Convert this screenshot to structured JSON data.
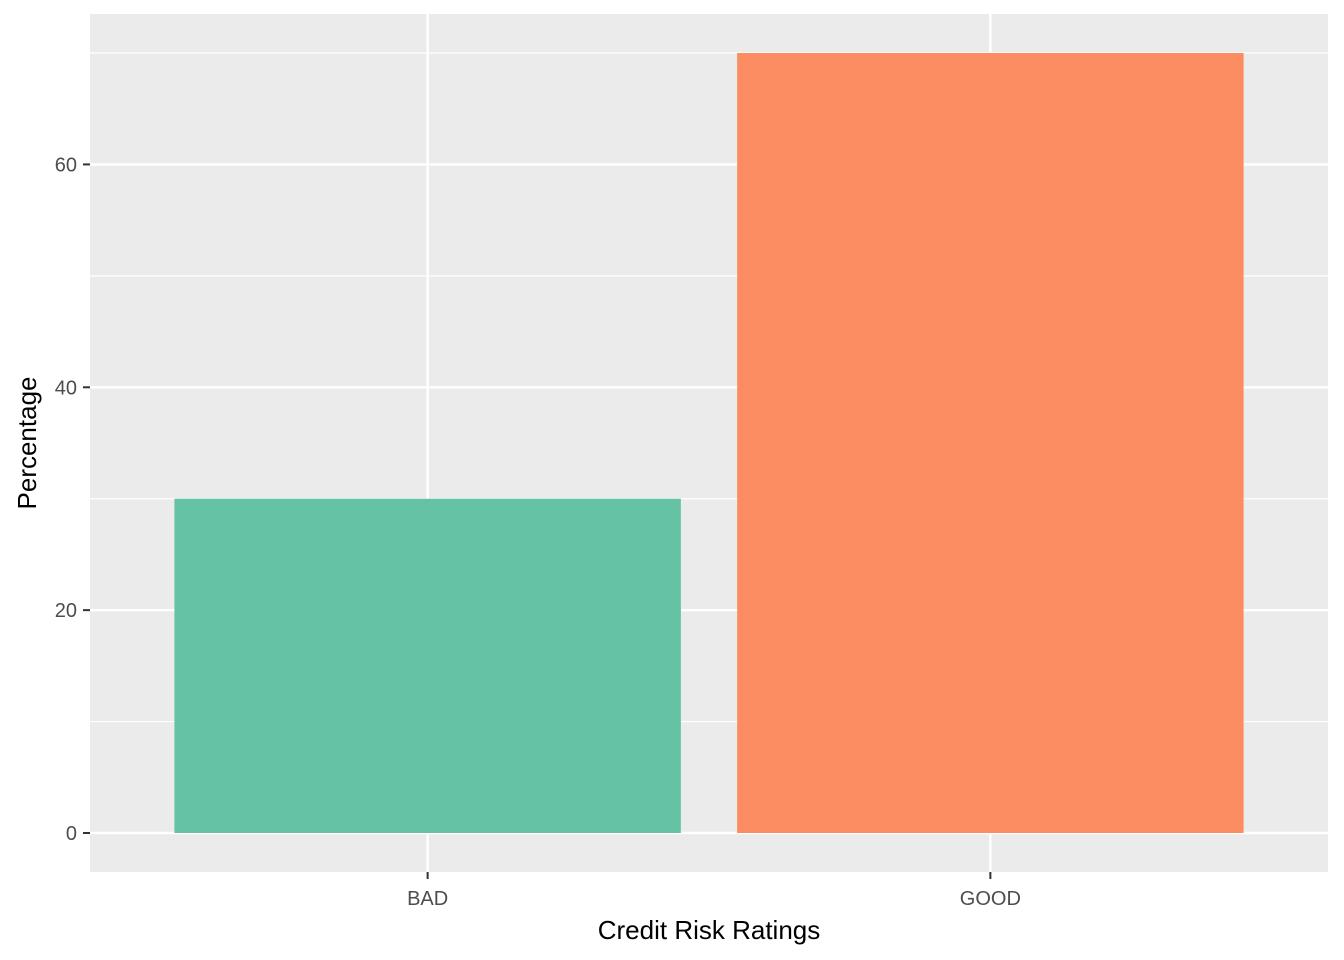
{
  "chart_data": {
    "type": "bar",
    "categories": [
      "BAD",
      "GOOD"
    ],
    "values": [
      30,
      70
    ],
    "colors": [
      "#66c2a5",
      "#fc8d62"
    ],
    "xlabel": "Credit Risk Ratings",
    "ylabel": "Percentage",
    "ylim": [
      -3.5,
      73.5
    ],
    "yticks": [
      0,
      20,
      40,
      60
    ],
    "ytick_labels": [
      "0",
      "20",
      "40",
      "60"
    ],
    "grid": true,
    "panel_background": "#ebebeb",
    "gridline_color": "#ffffff"
  }
}
